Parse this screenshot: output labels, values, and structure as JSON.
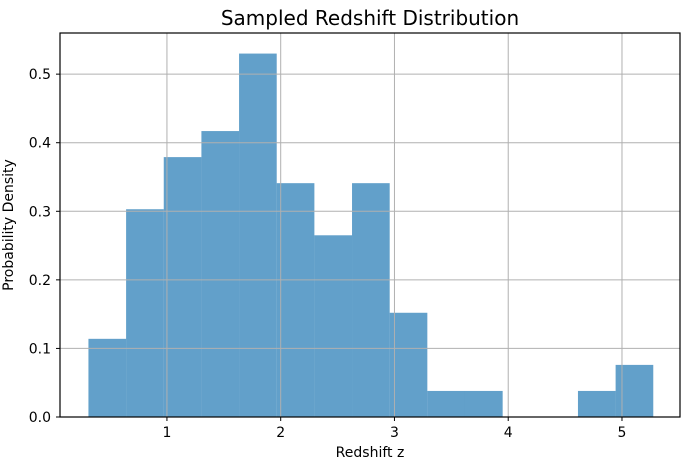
{
  "figure": {
    "background": "#ffffff",
    "text_color": "#000000"
  },
  "chart_data": {
    "type": "bar",
    "subtype": "histogram",
    "title": "Sampled Redshift Distribution",
    "xlabel": "Redshift z",
    "ylabel": "Probability Density",
    "bin_edges": [
      0.31,
      0.641,
      0.972,
      1.303,
      1.634,
      1.965,
      2.296,
      2.627,
      2.958,
      3.289,
      3.62,
      3.951,
      4.282,
      4.613,
      4.944,
      5.275
    ],
    "values": [
      0.114,
      0.303,
      0.379,
      0.417,
      0.53,
      0.341,
      0.265,
      0.341,
      0.152,
      0.038,
      0.038,
      0.0,
      0.0,
      0.038,
      0.076
    ],
    "xticks": [
      1,
      2,
      3,
      4,
      5
    ],
    "xtick_labels": [
      "1",
      "2",
      "3",
      "4",
      "5"
    ],
    "yticks": [
      0.0,
      0.1,
      0.2,
      0.3,
      0.4,
      0.5
    ],
    "ytick_labels": [
      "0.0",
      "0.1",
      "0.2",
      "0.3",
      "0.4",
      "0.5"
    ],
    "xlim": [
      0.06,
      5.51
    ],
    "ylim": [
      0.0,
      0.56
    ],
    "grid": true,
    "grid_color": "#b0b0b0",
    "bar_color": "#1f77b4",
    "bar_alpha": 0.7,
    "spine_color": "#000000",
    "legend": null
  }
}
